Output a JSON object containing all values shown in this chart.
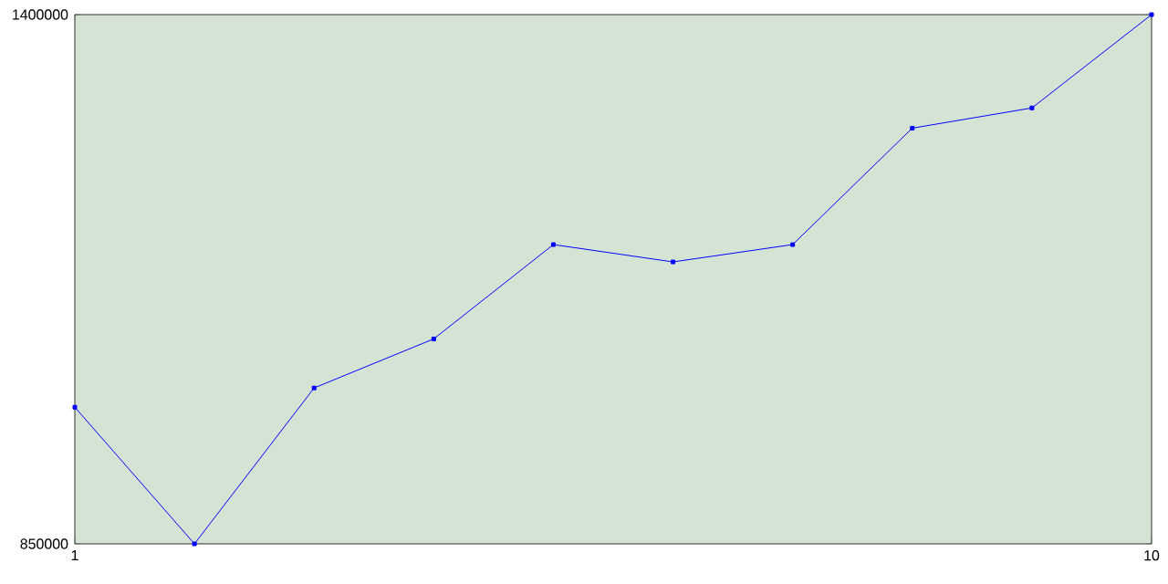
{
  "chart_data": {
    "type": "line",
    "x": [
      1,
      2,
      3,
      4,
      5,
      6,
      7,
      8,
      9,
      10
    ],
    "series": [
      {
        "color": "#0000ff",
        "values": [
          992000,
          850000,
          1012000,
          1063000,
          1161000,
          1143000,
          1161000,
          1282000,
          1303000,
          1400000
        ]
      }
    ],
    "xlim": [
      1,
      10
    ],
    "xticks": [
      1,
      10
    ],
    "ylim": [
      850000,
      1400000
    ],
    "yticks": [
      850000,
      1400000
    ],
    "marker": "square",
    "line_style": "solid",
    "grid": false
  }
}
